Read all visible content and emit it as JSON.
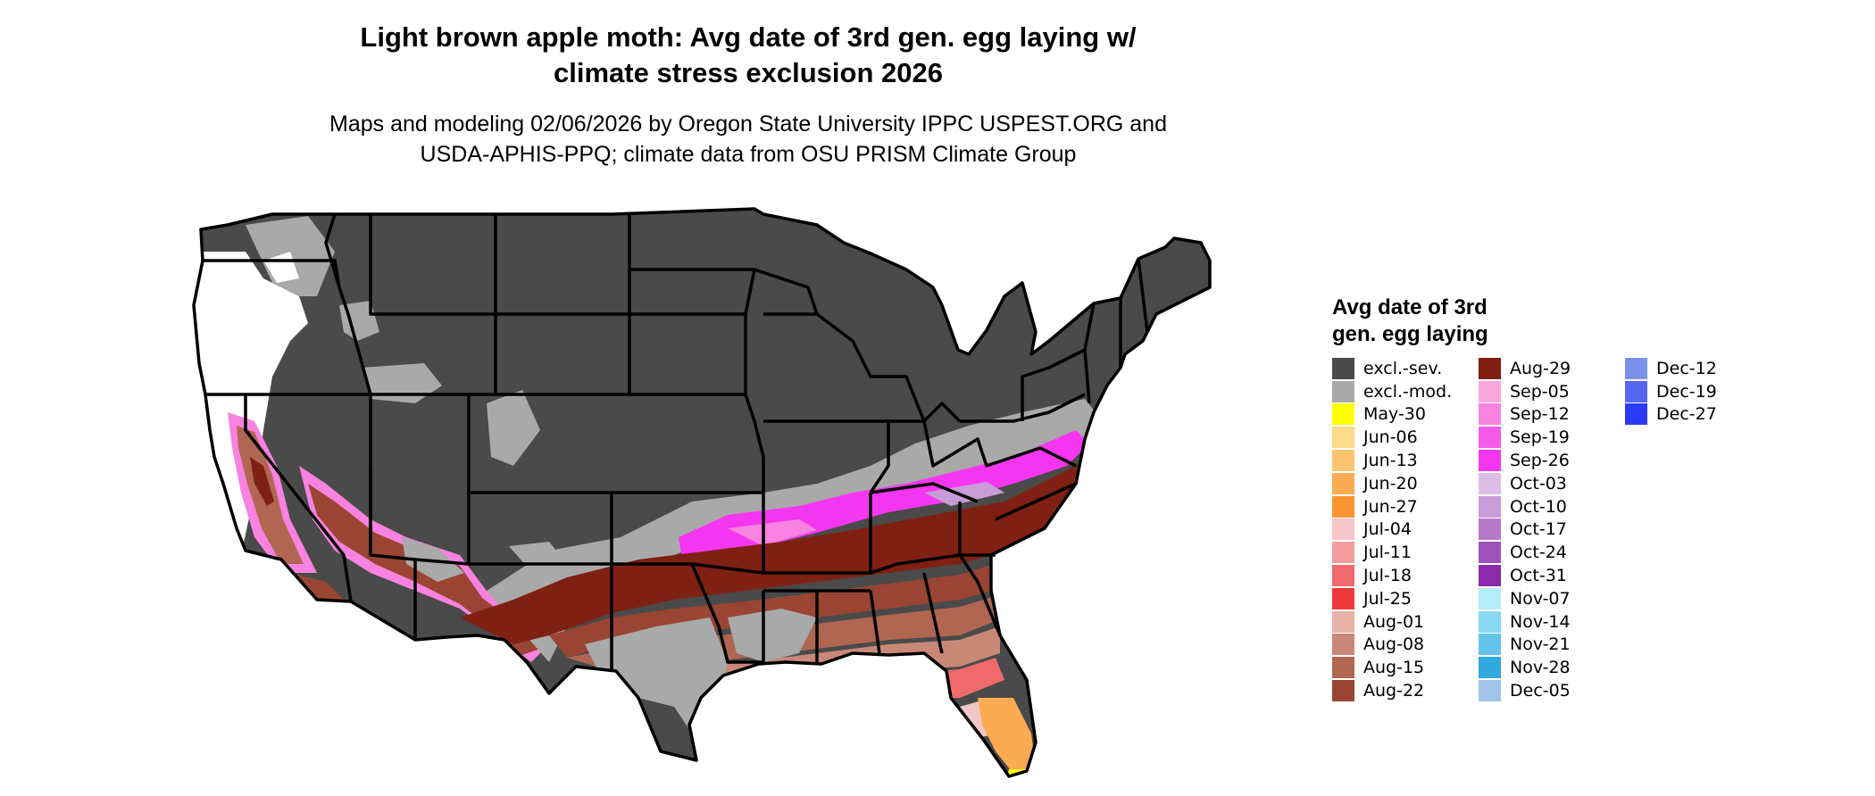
{
  "title": {
    "line1": "Light brown apple moth: Avg date of 3rd gen. egg laying w/",
    "line2": "climate stress exclusion 2026"
  },
  "subtitle": {
    "line1": "Maps and modeling 02/06/2026 by Oregon State University IPPC USPEST.ORG and",
    "line2": "USDA-APHIS-PPQ; climate data from OSU PRISM Climate Group"
  },
  "legend": {
    "title_line1": "Avg date of 3rd",
    "title_line2": "gen. egg laying",
    "columns": [
      [
        {
          "label": "excl.-sev.",
          "color": "#4a4a4a"
        },
        {
          "label": "excl.-mod.",
          "color": "#a9a9a9"
        },
        {
          "label": "May-30",
          "color": "#ffff00"
        },
        {
          "label": "Jun-06",
          "color": "#fdd98a"
        },
        {
          "label": "Jun-13",
          "color": "#fdc470"
        },
        {
          "label": "Jun-20",
          "color": "#fbab52"
        },
        {
          "label": "Jun-27",
          "color": "#fa9632"
        },
        {
          "label": "Jul-04",
          "color": "#f5c6c8"
        },
        {
          "label": "Jul-11",
          "color": "#f29c9e"
        },
        {
          "label": "Jul-18",
          "color": "#f06a6b"
        },
        {
          "label": "Jul-25",
          "color": "#f0393b"
        },
        {
          "label": "Aug-01",
          "color": "#e7b2a8"
        },
        {
          "label": "Aug-08",
          "color": "#c98877"
        },
        {
          "label": "Aug-15",
          "color": "#b16652"
        },
        {
          "label": "Aug-22",
          "color": "#9a4533"
        }
      ],
      [
        {
          "label": "Aug-29",
          "color": "#7f2013"
        },
        {
          "label": "Sep-05",
          "color": "#f8a8dc"
        },
        {
          "label": "Sep-12",
          "color": "#f882e0"
        },
        {
          "label": "Sep-19",
          "color": "#f65be8"
        },
        {
          "label": "Sep-26",
          "color": "#f536f0"
        },
        {
          "label": "Oct-03",
          "color": "#dcbde6"
        },
        {
          "label": "Oct-10",
          "color": "#c89cd8"
        },
        {
          "label": "Oct-17",
          "color": "#b67ac9"
        },
        {
          "label": "Oct-24",
          "color": "#a052bb"
        },
        {
          "label": "Oct-31",
          "color": "#8b2aab"
        },
        {
          "label": "Nov-07",
          "color": "#b3eefa"
        },
        {
          "label": "Nov-14",
          "color": "#8ad8f2"
        },
        {
          "label": "Nov-21",
          "color": "#64c3ea"
        },
        {
          "label": "Nov-28",
          "color": "#30a9de"
        },
        {
          "label": "Dec-05",
          "color": "#9fc4e8"
        }
      ],
      [
        {
          "label": "Dec-12",
          "color": "#7b92ec"
        },
        {
          "label": "Dec-19",
          "color": "#5567ee"
        },
        {
          "label": "Dec-27",
          "color": "#2b3bf5"
        }
      ]
    ]
  },
  "map": {
    "fill_colors": {
      "severe": "#4a4a4a",
      "moderate": "#a9a9a9",
      "white": "#ffffff",
      "aug29": "#7f2013",
      "aug22": "#9a4533",
      "aug15": "#b16652",
      "aug08": "#c98877",
      "aug01": "#e7b2a8",
      "jul25": "#f0393b",
      "jul18": "#f06a6b",
      "jul04": "#f5c6c8",
      "sep26": "#f536f0",
      "sep12": "#f882e0",
      "jun20": "#fbab52",
      "oct10": "#c89cd8",
      "may30": "#ffff00",
      "border": "#000000"
    }
  }
}
